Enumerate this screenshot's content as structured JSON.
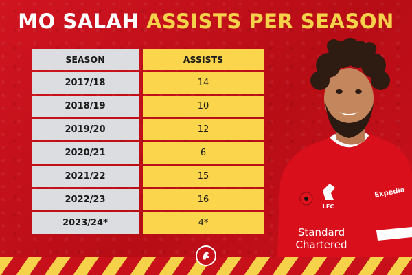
{
  "title": {
    "part1": "MO SALAH",
    "part2": "ASSISTS PER SEASON"
  },
  "table": {
    "headers": {
      "season": "SEASON",
      "assists": "ASSISTS"
    },
    "rows": [
      {
        "season": "2017/18",
        "assists": "14"
      },
      {
        "season": "2018/19",
        "assists": "10"
      },
      {
        "season": "2019/20",
        "assists": "12"
      },
      {
        "season": "2020/21",
        "assists": "6"
      },
      {
        "season": "2021/22",
        "assists": "15"
      },
      {
        "season": "2022/23",
        "assists": "16"
      },
      {
        "season": "2023/24*",
        "assists": "4*"
      }
    ]
  },
  "shirt": {
    "sponsor_line1": "Standard",
    "sponsor_line2": "Chartered",
    "club": "LFC",
    "sleeve": "Expedia"
  },
  "colors": {
    "background": "#c8101b",
    "accent_yellow": "#f6d24b",
    "season_cell": "#dcdde0",
    "assists_cell": "#fbd54c"
  },
  "icons": [
    "liver-bird-icon",
    "poppy-icon"
  ]
}
